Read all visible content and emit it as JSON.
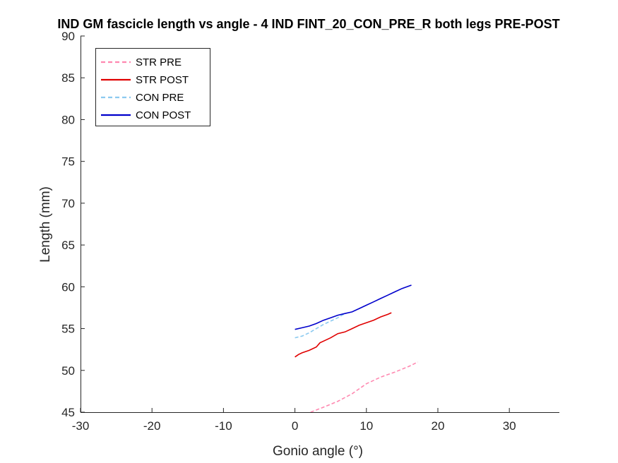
{
  "chart_data": {
    "type": "line",
    "title": "IND GM fascicle length vs angle - 4 IND FINT_20_CON_PRE_R both legs PRE-POST",
    "xlabel": "Gonio angle (°)",
    "ylabel": "Length (mm)",
    "xlim": [
      -30,
      37
    ],
    "ylim": [
      45,
      90
    ],
    "xticks": [
      "-30",
      "-20",
      "-10",
      "0",
      "10",
      "20",
      "30"
    ],
    "yticks": [
      "45",
      "50",
      "55",
      "60",
      "65",
      "70",
      "75",
      "80",
      "85",
      "90"
    ],
    "grid": false,
    "legend_position": "top-left",
    "series": [
      {
        "name": "STR PRE",
        "color": "#ff88b0",
        "dash": true,
        "x": [
          2.2,
          4,
          6,
          8,
          10,
          12,
          14,
          16,
          17.2
        ],
        "y": [
          45.0,
          45.6,
          46.3,
          47.2,
          48.4,
          49.2,
          49.8,
          50.5,
          51.0
        ]
      },
      {
        "name": "STR POST",
        "color": "#e00000",
        "dash": false,
        "x": [
          0,
          0.5,
          1,
          2,
          3,
          3.5,
          4,
          5,
          6,
          7,
          8,
          9,
          10,
          11,
          12,
          13,
          13.5
        ],
        "y": [
          51.6,
          51.9,
          52.1,
          52.4,
          52.8,
          53.3,
          53.5,
          53.9,
          54.4,
          54.6,
          55.0,
          55.4,
          55.7,
          56.0,
          56.4,
          56.7,
          56.9
        ]
      },
      {
        "name": "CON PRE",
        "color": "#8ccaf0",
        "dash": true,
        "x": [
          0,
          1,
          2,
          3,
          4,
          5,
          6,
          7
        ],
        "y": [
          53.9,
          54.1,
          54.5,
          55.0,
          55.5,
          55.9,
          56.3,
          56.8
        ]
      },
      {
        "name": "CON POST",
        "color": "#0000cc",
        "dash": false,
        "x": [
          0,
          1,
          2,
          3,
          4,
          5,
          6,
          7,
          8,
          9,
          10,
          11,
          12,
          13,
          14,
          15,
          16.3
        ],
        "y": [
          54.9,
          55.1,
          55.3,
          55.6,
          56.0,
          56.3,
          56.6,
          56.8,
          57.0,
          57.4,
          57.8,
          58.2,
          58.6,
          59.0,
          59.4,
          59.8,
          60.2
        ]
      }
    ]
  }
}
